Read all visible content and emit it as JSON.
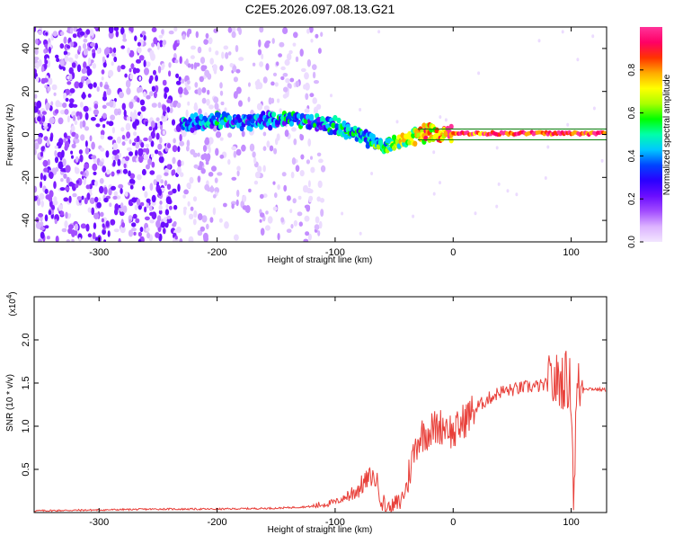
{
  "chart_data": [
    {
      "type": "heatmap",
      "title": "C2E5.2026.097.08.13.G21",
      "xlabel": "Height of straight line (km)",
      "ylabel": "Frequency (Hz)",
      "xlim": [
        -355,
        130
      ],
      "ylim": [
        -50,
        50
      ],
      "xticks": [
        -300,
        -200,
        -100,
        0,
        100
      ],
      "yticks": [
        -40,
        -20,
        0,
        20,
        40
      ],
      "colorbar": {
        "label": "Normalized spectral amplitude",
        "range": [
          0.0,
          1.0
        ],
        "ticks": [
          "0.0",
          "0.2",
          "0.4",
          "0.6",
          "0.8"
        ],
        "colors": [
          "#f2e6ff",
          "#dcb3ff",
          "#a24cff",
          "#6a0dff",
          "#2a00ff",
          "#0044ff",
          "#00c8ff",
          "#00ffaa",
          "#00ff00",
          "#aaff00",
          "#ffff00",
          "#ffaa00",
          "#ff3300",
          "#ff0066",
          "#ff3399"
        ]
      },
      "signal_track": [
        {
          "x": -230,
          "f": 5,
          "a": 0.32
        },
        {
          "x": -200,
          "f": 6,
          "a": 0.38
        },
        {
          "x": -170,
          "f": 6,
          "a": 0.33
        },
        {
          "x": -140,
          "f": 7,
          "a": 0.4
        },
        {
          "x": -120,
          "f": 6,
          "a": 0.38
        },
        {
          "x": -100,
          "f": 4,
          "a": 0.45
        },
        {
          "x": -80,
          "f": 0,
          "a": 0.42
        },
        {
          "x": -60,
          "f": -6,
          "a": 0.48
        },
        {
          "x": -50,
          "f": -4,
          "a": 0.55
        },
        {
          "x": -40,
          "f": -2,
          "a": 0.62
        },
        {
          "x": -20,
          "f": 1,
          "a": 0.75
        },
        {
          "x": 0,
          "f": 0.5,
          "a": 0.85
        },
        {
          "x": 50,
          "f": 0.5,
          "a": 0.92
        },
        {
          "x": 100,
          "f": 0.5,
          "a": 0.95
        },
        {
          "x": 130,
          "f": 0.5,
          "a": 0.95
        }
      ],
      "band_lines_hz": [
        2.5,
        -2.5
      ]
    },
    {
      "type": "line",
      "xlabel": "Height of straight line (km)",
      "ylabel": "SNR (10 * v/v)",
      "y_multiplier": "(x10",
      "y_multiplier_exp": "4",
      "y_multiplier_close": ")",
      "xlim": [
        -355,
        130
      ],
      "ylim": [
        0,
        2.5
      ],
      "xticks": [
        -300,
        -200,
        -100,
        0,
        100
      ],
      "yticks": [
        0.5,
        1.0,
        1.5,
        2.0
      ],
      "ytick_labels": [
        "0.5",
        "1.0",
        "1.5",
        "2.0"
      ],
      "color": "#e8403a",
      "series": [
        {
          "name": "SNR",
          "x": [
            -355,
            -300,
            -250,
            -200,
            -150,
            -120,
            -100,
            -90,
            -80,
            -70,
            -65,
            -60,
            -55,
            -45,
            -40,
            -35,
            -30,
            -25,
            -20,
            -15,
            -10,
            -5,
            0,
            10,
            20,
            30,
            40,
            50,
            60,
            70,
            80,
            90,
            95,
            100,
            102,
            105,
            110,
            120,
            130
          ],
          "y": [
            0.02,
            0.03,
            0.04,
            0.04,
            0.05,
            0.07,
            0.12,
            0.18,
            0.28,
            0.42,
            0.38,
            0.12,
            0.05,
            0.12,
            0.28,
            0.6,
            0.85,
            0.92,
            0.95,
            0.98,
            1.0,
            1.02,
            0.9,
            1.08,
            1.22,
            1.32,
            1.4,
            1.42,
            1.45,
            1.46,
            1.48,
            1.52,
            1.55,
            1.45,
            0.2,
            1.45,
            1.44,
            1.43,
            1.42
          ]
        }
      ]
    }
  ]
}
